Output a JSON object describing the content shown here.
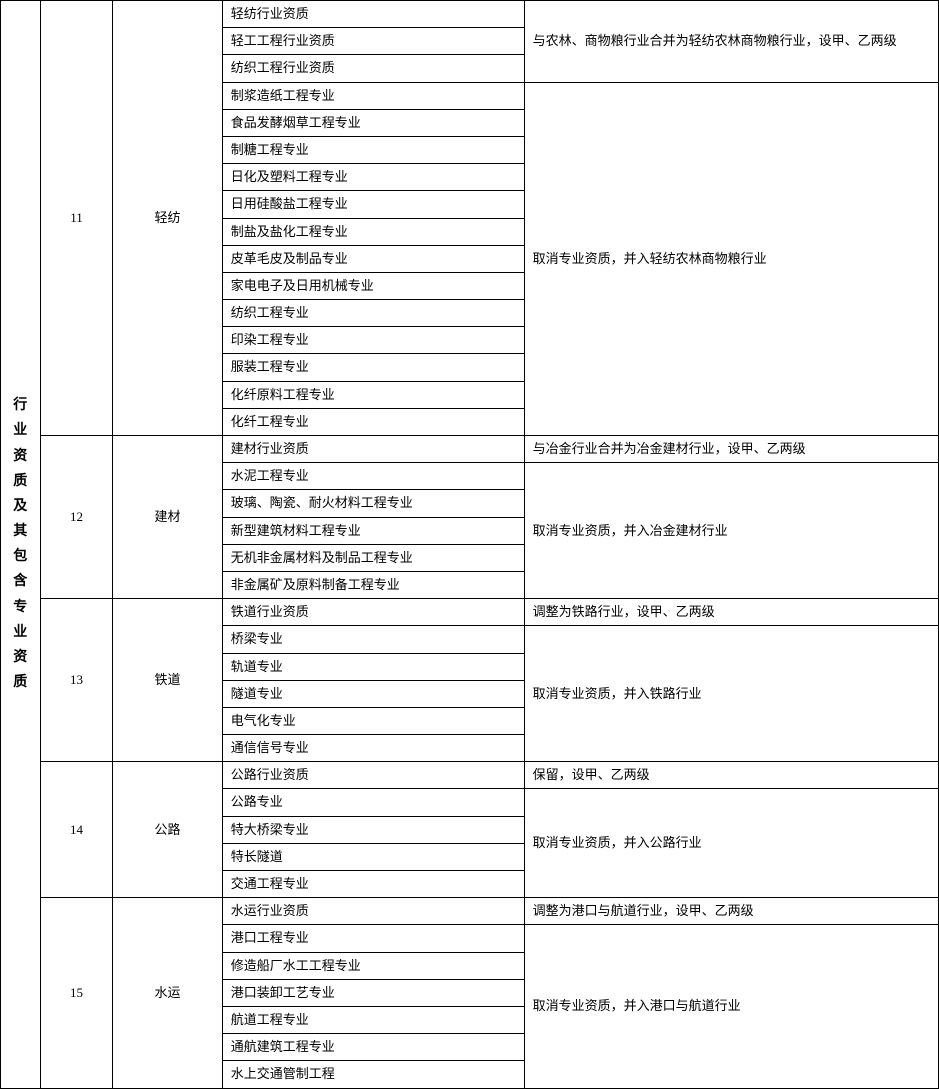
{
  "header": "行业资质及其包含专业资质",
  "sections": [
    {
      "num": "11",
      "category": "轻纺",
      "group1": {
        "note": "与农林、商物粮行业合并为轻纺农林商物粮行业，设甲、乙两级",
        "items": [
          "轻纺行业资质",
          "轻工工程行业资质",
          "纺织工程行业资质"
        ]
      },
      "group2": {
        "note": "取消专业资质，并入轻纺农林商物粮行业",
        "items": [
          "制浆造纸工程专业",
          "食品发酵烟草工程专业",
          "制糖工程专业",
          "日化及塑料工程专业",
          "日用硅酸盐工程专业",
          "制盐及盐化工程专业",
          "皮革毛皮及制品专业",
          "家电电子及日用机械专业",
          "纺织工程专业",
          "印染工程专业",
          "服装工程专业",
          "化纤原料工程专业",
          "化纤工程专业"
        ]
      }
    },
    {
      "num": "12",
      "category": "建材",
      "group1": {
        "note": "与冶金行业合并为冶金建材行业，设甲、乙两级",
        "items": [
          "建材行业资质"
        ]
      },
      "group2": {
        "note": "取消专业资质，并入冶金建材行业",
        "items": [
          "水泥工程专业",
          "玻璃、陶瓷、耐火材料工程专业",
          "新型建筑材料工程专业",
          "无机非金属材料及制品工程专业",
          "非金属矿及原料制备工程专业"
        ]
      }
    },
    {
      "num": "13",
      "category": "铁道",
      "group1": {
        "note": "调整为铁路行业，设甲、乙两级",
        "items": [
          "铁道行业资质"
        ]
      },
      "group2": {
        "note": "取消专业资质，并入铁路行业",
        "items": [
          "桥梁专业",
          "轨道专业",
          "隧道专业",
          "电气化专业",
          "通信信号专业"
        ]
      }
    },
    {
      "num": "14",
      "category": "公路",
      "group1": {
        "note": "保留，设甲、乙两级",
        "items": [
          "公路行业资质"
        ]
      },
      "group2": {
        "note": "取消专业资质，并入公路行业",
        "items": [
          "公路专业",
          "特大桥梁专业",
          "特长隧道",
          "交通工程专业"
        ]
      }
    },
    {
      "num": "15",
      "category": "水运",
      "group1": {
        "note": "调整为港口与航道行业，设甲、乙两级",
        "items": [
          "水运行业资质"
        ]
      },
      "group2": {
        "note": "取消专业资质，并入港口与航道行业",
        "items": [
          "港口工程专业",
          "修造船厂水工工程专业",
          "港口装卸工艺专业",
          "航道工程专业",
          "通航建筑工程专业",
          "水上交通管制工程"
        ]
      }
    }
  ]
}
